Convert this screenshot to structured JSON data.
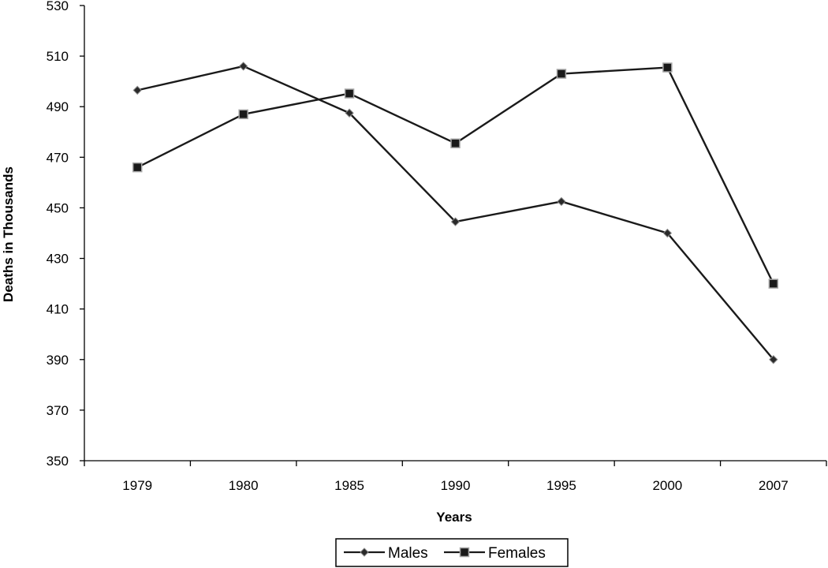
{
  "chart_data": {
    "type": "line",
    "title": "",
    "xlabel": "Years",
    "ylabel": "Deaths in Thousands",
    "categories": [
      "1979",
      "1980",
      "1985",
      "1990",
      "1995",
      "2000",
      "2007"
    ],
    "ylim": [
      350,
      530
    ],
    "yticks": [
      350,
      370,
      390,
      410,
      430,
      450,
      470,
      490,
      510,
      530
    ],
    "grid": false,
    "legend_position": "bottom",
    "series": [
      {
        "name": "Males",
        "marker": "diamond",
        "color": "#1a1a1a",
        "values": [
          496.5,
          506,
          487.5,
          444.5,
          452.5,
          440,
          390
        ]
      },
      {
        "name": "Females",
        "marker": "square",
        "color": "#1a1a1a",
        "values": [
          466,
          487,
          495.2,
          475.5,
          503,
          505.5,
          420
        ]
      }
    ]
  }
}
